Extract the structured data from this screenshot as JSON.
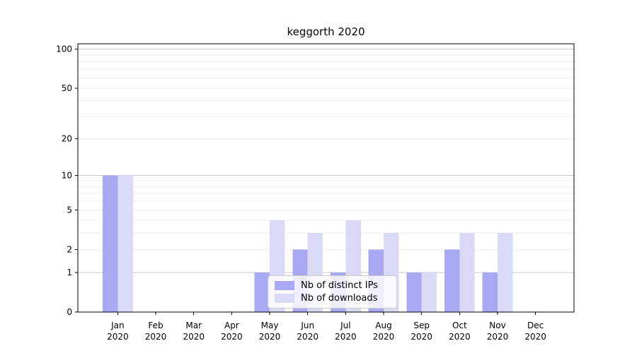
{
  "title": "keggorth 2020",
  "legend": {
    "items": [
      {
        "label": "Nb of distinct IPs"
      },
      {
        "label": "Nb of downloads"
      }
    ]
  },
  "chart_data": {
    "type": "bar",
    "title": "keggorth 2020",
    "categories": [
      "Jan",
      "Feb",
      "Mar",
      "Apr",
      "May",
      "Jun",
      "Jul",
      "Aug",
      "Sep",
      "Oct",
      "Nov",
      "Dec"
    ],
    "year_label": "2020",
    "series": [
      {
        "name": "Nb of distinct IPs",
        "color": "#a9a9f3",
        "values": [
          10,
          0,
          0,
          0,
          1,
          2,
          1,
          2,
          1,
          2,
          1,
          0
        ]
      },
      {
        "name": "Nb of downloads",
        "color": "#dadaf6",
        "values": [
          10,
          0,
          0,
          0,
          4,
          3,
          4,
          3,
          1,
          3,
          3,
          0
        ]
      }
    ],
    "yscale": "log1p",
    "ylim": [
      0,
      110
    ],
    "yticks": [
      0,
      1,
      2,
      5,
      10,
      20,
      50,
      100
    ],
    "major_gridlines": [
      1,
      10,
      100
    ],
    "minor_gridlines": [
      2,
      3,
      4,
      5,
      6,
      7,
      8,
      9,
      20,
      30,
      40,
      50,
      60,
      70,
      80,
      90
    ],
    "grid": true,
    "legend_position": "lower-center",
    "colors": {
      "major_grid": "#c9c9c9",
      "minor_grid": "#ececec",
      "spine": "#000000",
      "text": "#000000"
    }
  }
}
